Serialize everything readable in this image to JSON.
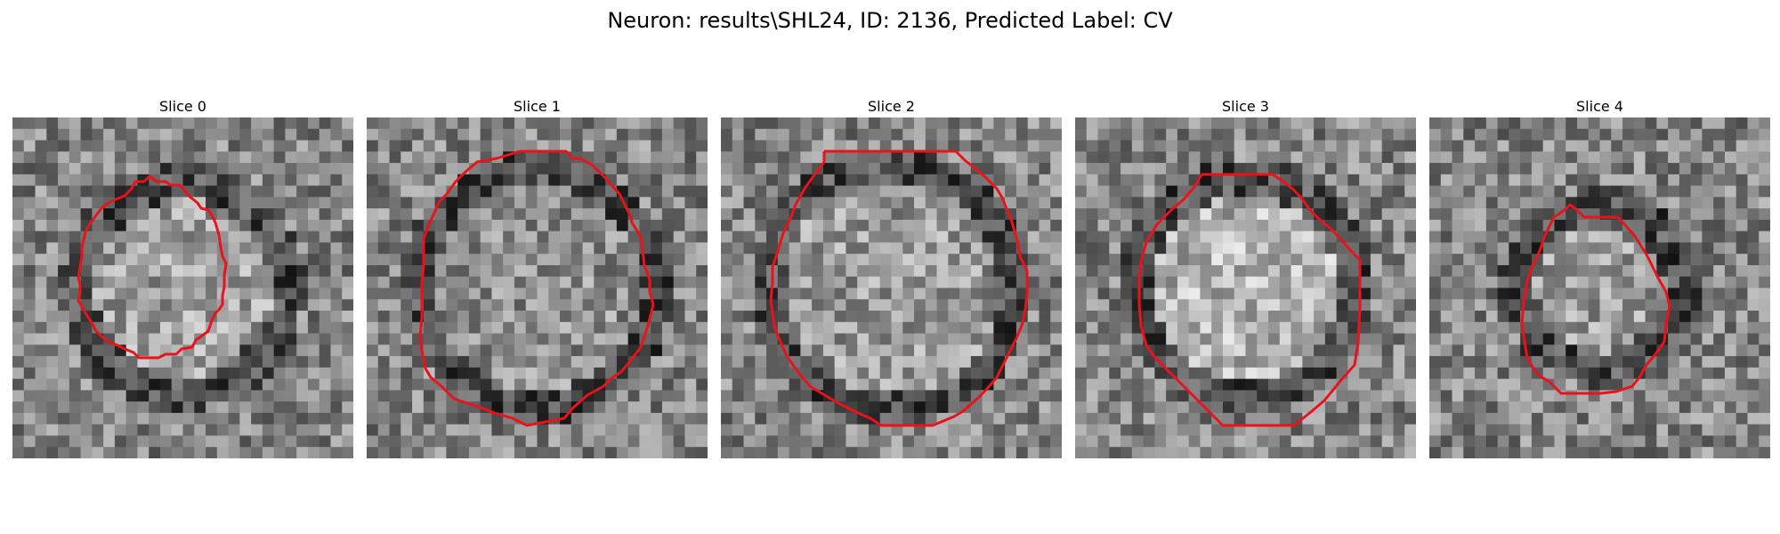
{
  "figure": {
    "title": "Neuron: results\\SHL24, ID: 2136, Predicted Label: CV",
    "contour_color": "#e8131b"
  },
  "panels": [
    {
      "title": "Slice 0",
      "seed": 11,
      "ring_scale": 0.88,
      "center_brightness": 0.62
    },
    {
      "title": "Slice 1",
      "seed": 23,
      "ring_scale": 1.0,
      "center_brightness": 0.56
    },
    {
      "title": "Slice 2",
      "seed": 37,
      "ring_scale": 1.03,
      "center_brightness": 0.6
    },
    {
      "title": "Slice 3",
      "seed": 51,
      "ring_scale": 0.93,
      "center_brightness": 0.7
    },
    {
      "title": "Slice 4",
      "seed": 67,
      "ring_scale": 0.68,
      "center_brightness": 0.62
    }
  ]
}
